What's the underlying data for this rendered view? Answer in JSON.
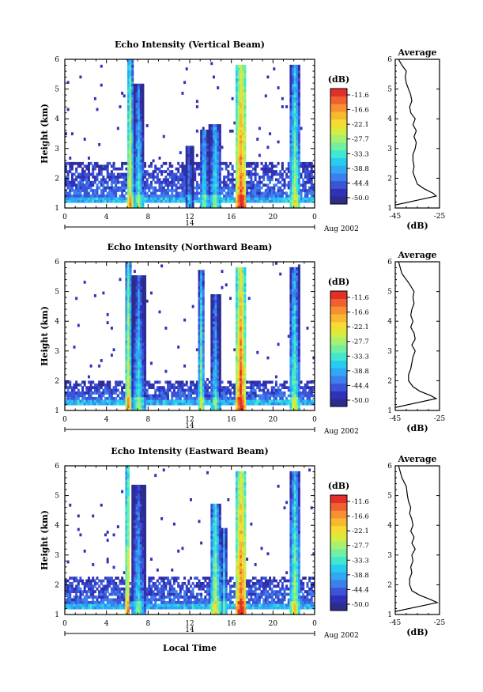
{
  "figure": {
    "date_label": "Aug 2002",
    "day_label": "14",
    "xlabel": "Local Time",
    "colorbar_unit": "(dB)",
    "colorbar_ticks": [
      "-11.6",
      "-16.6",
      "-22.1",
      "-27.7",
      "-33.3",
      "-38.8",
      "-44.4",
      "-50.0"
    ],
    "colorbar_range": [
      -52,
      -9
    ],
    "colormap": [
      "#2c2c8c",
      "#3030b8",
      "#3a55d8",
      "#3c80ee",
      "#30a8f4",
      "#28ccf0",
      "#40e8d0",
      "#70f0a0",
      "#a8f070",
      "#d8ec40",
      "#f4dc30",
      "#f8b830",
      "#f89030",
      "#f06030",
      "#e03028"
    ]
  },
  "chart_data": [
    {
      "type": "heatmap",
      "title": "Echo Intensity (Vertical Beam)",
      "xlabel": "Local Time",
      "ylabel": "Height (km)",
      "xlim": [
        0,
        24
      ],
      "ylim": [
        1,
        6
      ],
      "xticks": [
        "0",
        "4",
        "8",
        "12",
        "16",
        "20",
        "0"
      ],
      "yticks": [
        "1",
        "2",
        "3",
        "4",
        "5",
        "6"
      ],
      "base_layer_top_km": 2.5,
      "precip_bands": [
        {
          "start": 6.0,
          "end": 6.5,
          "peak_dB": -20,
          "top_km": 6.0
        },
        {
          "start": 6.6,
          "end": 7.6,
          "peak_dB": -33,
          "top_km": 5.2
        },
        {
          "start": 11.6,
          "end": 12.3,
          "peak_dB": -40,
          "top_km": 3.1
        },
        {
          "start": 13.0,
          "end": 13.8,
          "peak_dB": -33,
          "top_km": 3.6
        },
        {
          "start": 13.9,
          "end": 15.0,
          "peak_dB": -33,
          "top_km": 3.8
        },
        {
          "start": 16.5,
          "end": 17.4,
          "peak_dB": -12,
          "top_km": 5.8
        },
        {
          "start": 21.6,
          "end": 22.6,
          "peak_dB": -27,
          "top_km": 5.8
        }
      ]
    },
    {
      "type": "line",
      "title": "Average",
      "xlabel": "(dB)",
      "xlim": [
        -45,
        -25
      ],
      "ylim": [
        1,
        6
      ],
      "xticks": [
        "-45",
        "-25"
      ],
      "yticks": [
        "1",
        "2",
        "3",
        "4",
        "5",
        "6"
      ],
      "x": [
        -45,
        -26.5,
        -28,
        -32,
        -35,
        -36,
        -37,
        -36.5,
        -37,
        -37,
        -36,
        -35.5,
        -36.5,
        -35.5,
        -37,
        -36,
        -38,
        -38.5,
        -37.5,
        -38,
        -39,
        -40,
        -40.5,
        -40,
        -42,
        -43.5
      ],
      "y": [
        1.1,
        1.4,
        1.5,
        1.65,
        1.8,
        2.0,
        2.2,
        2.4,
        2.6,
        2.8,
        3.0,
        3.2,
        3.4,
        3.6,
        3.8,
        4.0,
        4.2,
        4.4,
        4.6,
        4.8,
        5.0,
        5.2,
        5.4,
        5.6,
        5.8,
        6.0
      ]
    },
    {
      "type": "heatmap",
      "title": "Echo Intensity (Northward Beam)",
      "xlabel": "Local Time",
      "ylabel": "Height (km)",
      "xlim": [
        0,
        24
      ],
      "ylim": [
        1,
        6
      ],
      "xticks": [
        "0",
        "4",
        "8",
        "12",
        "16",
        "20",
        "0"
      ],
      "yticks": [
        "1",
        "2",
        "3",
        "4",
        "5",
        "6"
      ],
      "base_layer_top_km": 2.0,
      "precip_bands": [
        {
          "start": 5.8,
          "end": 6.4,
          "peak_dB": -22,
          "top_km": 6.0
        },
        {
          "start": 6.5,
          "end": 7.7,
          "peak_dB": -33,
          "top_km": 5.5
        },
        {
          "start": 12.8,
          "end": 13.4,
          "peak_dB": -28,
          "top_km": 5.7
        },
        {
          "start": 14.0,
          "end": 14.9,
          "peak_dB": -34,
          "top_km": 4.9
        },
        {
          "start": 16.5,
          "end": 17.3,
          "peak_dB": -12,
          "top_km": 5.8
        },
        {
          "start": 21.6,
          "end": 22.5,
          "peak_dB": -28,
          "top_km": 5.8
        }
      ]
    },
    {
      "type": "line",
      "title": "Average",
      "xlabel": "(dB)",
      "xlim": [
        -45,
        -25
      ],
      "ylim": [
        1,
        6
      ],
      "xticks": [
        "-45",
        "-25"
      ],
      "yticks": [
        "1",
        "2",
        "3",
        "4",
        "5",
        "6"
      ],
      "x": [
        -45,
        -26.5,
        -29,
        -34,
        -37,
        -39,
        -39,
        -38,
        -37.5,
        -37,
        -36,
        -37.5,
        -36,
        -36.5,
        -38,
        -37,
        -38,
        -37.5,
        -36.5,
        -37,
        -36.5,
        -39,
        -42,
        -43.5
      ],
      "y": [
        1.1,
        1.4,
        1.5,
        1.65,
        1.8,
        2.0,
        2.2,
        2.4,
        2.6,
        2.8,
        3.0,
        3.2,
        3.4,
        3.6,
        3.8,
        4.0,
        4.2,
        4.4,
        4.6,
        4.8,
        5.0,
        5.3,
        5.6,
        6.0
      ]
    },
    {
      "type": "heatmap",
      "title": "Echo Intensity (Eastward Beam)",
      "xlabel": "Local Time",
      "ylabel": "Height (km)",
      "xlim": [
        0,
        24
      ],
      "ylim": [
        1,
        6
      ],
      "xticks": [
        "0",
        "4",
        "8",
        "12",
        "16",
        "20",
        "0"
      ],
      "yticks": [
        "1",
        "2",
        "3",
        "4",
        "5",
        "6"
      ],
      "base_layer_top_km": 2.3,
      "precip_bands": [
        {
          "start": 5.8,
          "end": 6.3,
          "peak_dB": -20,
          "top_km": 6.0
        },
        {
          "start": 6.4,
          "end": 7.7,
          "peak_dB": -35,
          "top_km": 5.4
        },
        {
          "start": 14.0,
          "end": 14.9,
          "peak_dB": -26,
          "top_km": 4.7
        },
        {
          "start": 15.0,
          "end": 15.6,
          "peak_dB": -34,
          "top_km": 3.9
        },
        {
          "start": 16.5,
          "end": 17.4,
          "peak_dB": -12,
          "top_km": 5.8
        },
        {
          "start": 21.6,
          "end": 22.6,
          "peak_dB": -27,
          "top_km": 5.8
        }
      ]
    },
    {
      "type": "line",
      "title": "Average",
      "xlabel": "(dB)",
      "xlim": [
        -45,
        -25
      ],
      "ylim": [
        1,
        6
      ],
      "xticks": [
        "-45",
        "-25"
      ],
      "yticks": [
        "1",
        "2",
        "3",
        "4",
        "5",
        "6"
      ],
      "x": [
        -45,
        -26,
        -29,
        -34,
        -37.5,
        -38.5,
        -38.5,
        -37.5,
        -38,
        -37,
        -37.5,
        -36,
        -37.5,
        -36.5,
        -38,
        -37,
        -37.5,
        -38.5,
        -38,
        -39,
        -39.5,
        -40,
        -42,
        -43.5
      ],
      "y": [
        1.1,
        1.4,
        1.5,
        1.65,
        1.8,
        2.0,
        2.2,
        2.4,
        2.6,
        2.8,
        3.0,
        3.2,
        3.4,
        3.6,
        3.8,
        4.0,
        4.2,
        4.4,
        4.6,
        4.8,
        5.0,
        5.3,
        5.6,
        6.0
      ]
    }
  ]
}
